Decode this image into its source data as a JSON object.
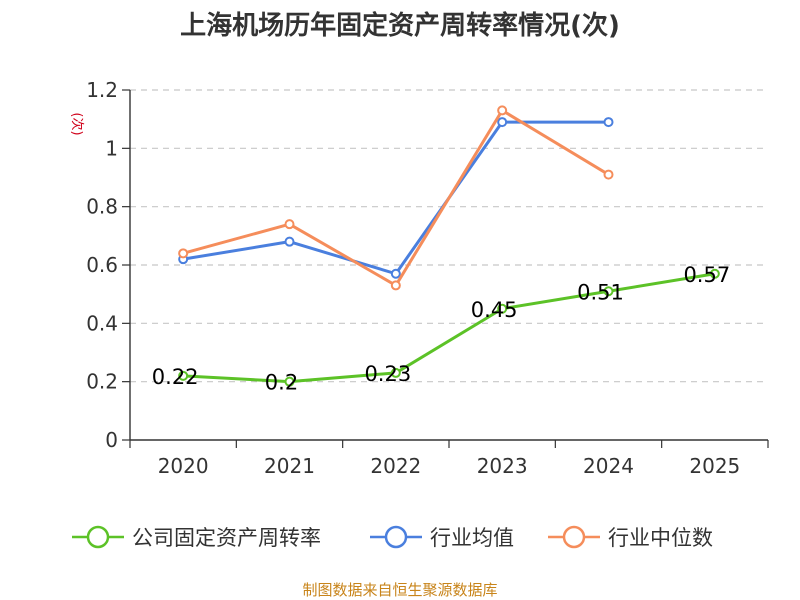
{
  "chart_data": {
    "type": "line",
    "title": "上海机场历年固定资产周转率情况(次)",
    "ylabel": "(次)",
    "xlabel": "",
    "categories": [
      "2020",
      "2021",
      "2022",
      "2023",
      "2024",
      "2025"
    ],
    "ylim": [
      0,
      1.2
    ],
    "yticks": [
      "0",
      "0.2",
      "0.4",
      "0.6",
      "0.8",
      "1",
      "1.2"
    ],
    "grid": true,
    "legend_position": "bottom",
    "series": [
      {
        "name": "公司固定资产周转率",
        "color": "#5cc227",
        "values": [
          0.22,
          0.2,
          0.23,
          0.45,
          0.51,
          0.57
        ],
        "labels": [
          "0.22",
          "0.2",
          "0.23",
          "0.45",
          "0.51",
          "0.57"
        ]
      },
      {
        "name": "行业均值",
        "color": "#4a7fde",
        "values": [
          0.62,
          0.68,
          0.57,
          1.09,
          1.09,
          null
        ]
      },
      {
        "name": "行业中位数",
        "color": "#f58d5b",
        "values": [
          0.64,
          0.74,
          0.53,
          1.13,
          0.91,
          null
        ]
      }
    ],
    "source": "制图数据来自恒生聚源数据库"
  }
}
